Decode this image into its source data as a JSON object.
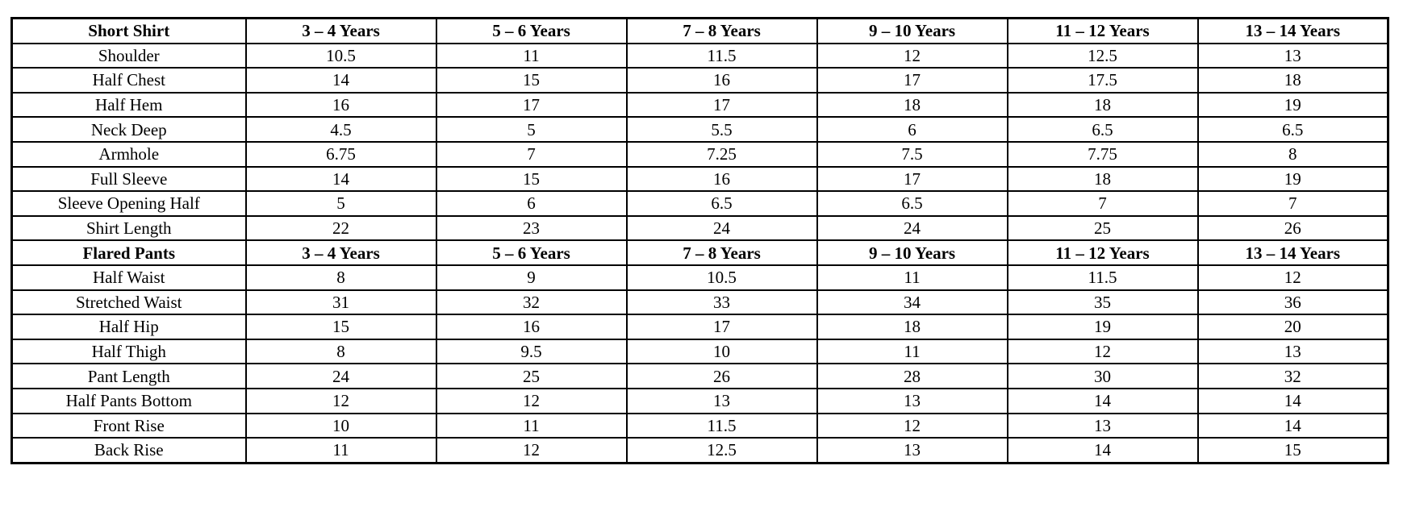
{
  "page": {
    "background_color": "#ffffff",
    "border_color": "#000000",
    "text_color": "#000000"
  },
  "tables": [
    {
      "name": "short-shirt-size-chart",
      "header": [
        "Short Shirt",
        "3 – 4 Years",
        "5 – 6 Years",
        "7 – 8 Years",
        "9 – 10 Years",
        "11 – 12 Years",
        "13 – 14 Years"
      ],
      "rows": [
        [
          "Shoulder",
          "10.5",
          "11",
          "11.5",
          "12",
          "12.5",
          "13"
        ],
        [
          "Half Chest",
          "14",
          "15",
          "16",
          "17",
          "17.5",
          "18"
        ],
        [
          "Half Hem",
          "16",
          "17",
          "17",
          "18",
          "18",
          "19"
        ],
        [
          "Neck Deep",
          "4.5",
          "5",
          "5.5",
          "6",
          "6.5",
          "6.5"
        ],
        [
          "Armhole",
          "6.75",
          "7",
          "7.25",
          "7.5",
          "7.75",
          "8"
        ],
        [
          "Full Sleeve",
          "14",
          "15",
          "16",
          "17",
          "18",
          "19"
        ],
        [
          "Sleeve Opening Half",
          "5",
          "6",
          "6.5",
          "6.5",
          "7",
          "7"
        ],
        [
          "Shirt Length",
          "22",
          "23",
          "24",
          "24",
          "25",
          "26"
        ]
      ]
    },
    {
      "name": "flared-pants-size-chart",
      "header": [
        "Flared Pants",
        "3 – 4 Years",
        "5 – 6 Years",
        "7 – 8 Years",
        "9 – 10 Years",
        "11 – 12 Years",
        "13 – 14 Years"
      ],
      "rows": [
        [
          "Half Waist",
          "8",
          "9",
          "10.5",
          "11",
          "11.5",
          "12"
        ],
        [
          "Stretched Waist",
          "31",
          "32",
          "33",
          "34",
          "35",
          "36"
        ],
        [
          "Half Hip",
          "15",
          "16",
          "17",
          "18",
          "19",
          "20"
        ],
        [
          "Half Thigh",
          "8",
          "9.5",
          "10",
          "11",
          "12",
          "13"
        ],
        [
          "Pant Length",
          "24",
          "25",
          "26",
          "28",
          "30",
          "32"
        ],
        [
          "Half Pants Bottom",
          "12",
          "12",
          "13",
          "13",
          "14",
          "14"
        ],
        [
          "Front Rise",
          "10",
          "11",
          "11.5",
          "12",
          "13",
          "14"
        ],
        [
          "Back Rise",
          "11",
          "12",
          "12.5",
          "13",
          "14",
          "15"
        ]
      ]
    }
  ]
}
